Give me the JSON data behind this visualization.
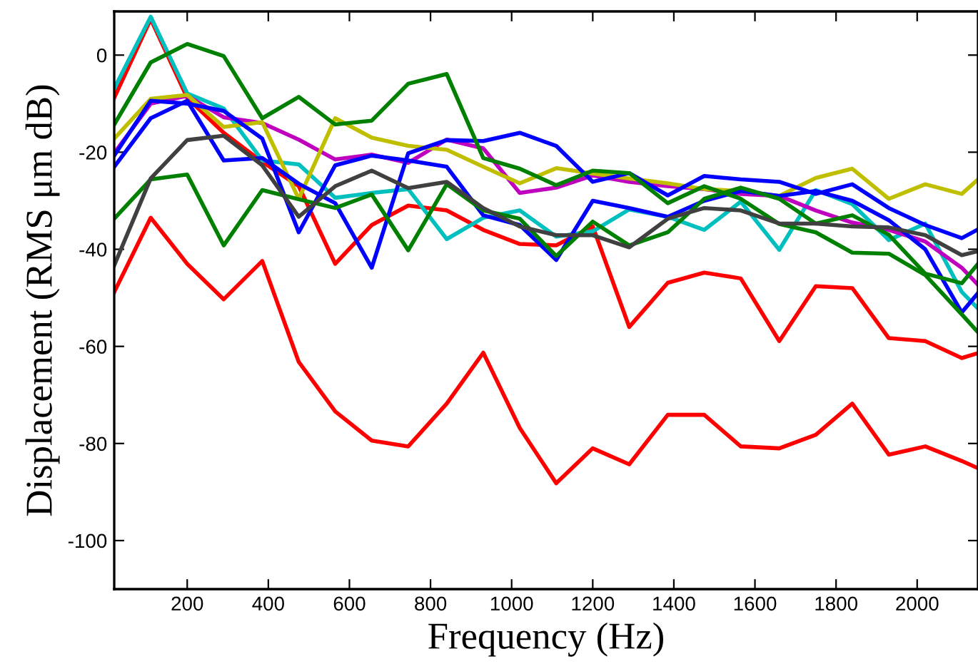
{
  "chart_data": {
    "type": "line",
    "xlabel": "Frequency (Hz)",
    "ylabel": "Displacement (RMS μm dB)",
    "x": [
      20,
      110,
      200,
      290,
      385,
      475,
      565,
      655,
      745,
      840,
      930,
      1020,
      1110,
      1200,
      1290,
      1385,
      1475,
      1565,
      1660,
      1750,
      1840,
      1930,
      2020,
      2110,
      2150
    ],
    "series": [
      {
        "color": "#ff0000",
        "values": [
          -8.8,
          7.4,
          -8.8,
          -16,
          -22,
          -27,
          -43,
          -35,
          -31,
          -32,
          -36,
          -38.9,
          -39.2,
          -35.3,
          -56,
          -46.9,
          -44.8,
          -46,
          -58.9,
          -47.6,
          -48,
          -58.3,
          -58.9,
          -62.4,
          -61.4
        ]
      },
      {
        "color": "#ff0000",
        "values": [
          -48.8,
          -33.5,
          -43,
          -50.3,
          -42.4,
          -63.2,
          -73.4,
          -79.4,
          -80.6,
          -71.8,
          -61.3,
          -76.8,
          -88.2,
          -81,
          -84.3,
          -74.1,
          -74.1,
          -80.6,
          -81,
          -78.2,
          -71.8,
          -82.3,
          -80.6,
          -83.6,
          -85.1
        ]
      },
      {
        "color": "#00bfbf",
        "values": [
          -6.9,
          7.9,
          -7.9,
          -11,
          -21.7,
          -22.5,
          -29.4,
          -28.4,
          -27.6,
          -37.9,
          -33.5,
          -32,
          -37.4,
          -36.3,
          -31.8,
          -33.3,
          -36,
          -30.2,
          -40.1,
          -27.8,
          -30.7,
          -38.1,
          -34.7,
          -48.8,
          -52.2
        ]
      },
      {
        "color": "#bf00bf",
        "values": [
          -20.2,
          -10,
          -8.4,
          -12.8,
          -14,
          -17.4,
          -21.5,
          -20.5,
          -22.2,
          -17.4,
          -19.2,
          -28.4,
          -27.3,
          -24.8,
          -26.1,
          -27,
          -27.6,
          -28.6,
          -29,
          -32,
          -34.5,
          -36,
          -38.4,
          -43.8,
          -47.3
        ]
      },
      {
        "color": "#bfbf00",
        "values": [
          -17.2,
          -9,
          -8.2,
          -14.8,
          -13.8,
          -29.6,
          -13,
          -17,
          -18.7,
          -19.5,
          -23,
          -26.4,
          -23.3,
          -24.4,
          -25.4,
          -26.4,
          -27.6,
          -28,
          -29,
          -25.3,
          -23.4,
          -29.6,
          -26.6,
          -28.6,
          -25.6
        ]
      },
      {
        "color": "#0000ff",
        "values": [
          -23,
          -13,
          -9.4,
          -21.7,
          -21.2,
          -26.5,
          -30.5,
          -43.8,
          -20.2,
          -17.5,
          -17.7,
          -16,
          -18.7,
          -26.1,
          -24.3,
          -28.9,
          -24.9,
          -25.6,
          -26.1,
          -28.6,
          -26.6,
          -31.5,
          -35,
          -37.7,
          -35.9
        ]
      },
      {
        "color": "#0000ff",
        "values": [
          -20.7,
          -9.4,
          -10,
          -11.5,
          -17.2,
          -36.5,
          -22.7,
          -20.7,
          -21.7,
          -23,
          -33,
          -35,
          -42.2,
          -30,
          -31.5,
          -33.3,
          -30,
          -28,
          -29,
          -28,
          -30,
          -34,
          -40,
          -53,
          -49
        ]
      },
      {
        "color": "#008000",
        "values": [
          -14.3,
          -1.5,
          2.3,
          -0.2,
          -13,
          -8.6,
          -14.3,
          -13.5,
          -5.9,
          -3.9,
          -21.2,
          -23.4,
          -26.8,
          -23.8,
          -24.3,
          -30.5,
          -27,
          -29.6,
          -34.8,
          -36.5,
          -40.7,
          -40.9,
          -45.3,
          -53.4,
          -57.1
        ]
      },
      {
        "color": "#008000",
        "values": [
          -33.7,
          -25.6,
          -24.6,
          -39.2,
          -27.8,
          -29.7,
          -31.5,
          -28.7,
          -40.2,
          -26.6,
          -32,
          -33.7,
          -41.4,
          -34.3,
          -39.2,
          -36.5,
          -29.6,
          -27.3,
          -29.6,
          -34.7,
          -33,
          -37,
          -45,
          -47,
          -43
        ]
      },
      {
        "color": "#404040",
        "values": [
          -43.3,
          -25.4,
          -17.5,
          -16.6,
          -22.7,
          -33.3,
          -27,
          -23.8,
          -27.4,
          -26.1,
          -31.5,
          -35.3,
          -37.1,
          -37.1,
          -39.6,
          -33.7,
          -31.5,
          -32,
          -34.7,
          -34.7,
          -35.3,
          -35.5,
          -37.1,
          -41.2,
          -40.4
        ]
      }
    ],
    "xlim": [
      20,
      2150
    ],
    "ylim": [
      -110,
      9
    ],
    "xticks": [
      200,
      400,
      600,
      800,
      1000,
      1200,
      1400,
      1600,
      1800,
      2000
    ],
    "yticks": [
      -100,
      -80,
      -60,
      -40,
      -20,
      0
    ],
    "marker": "none",
    "line_style": "solid",
    "grid": false,
    "legend": false
  }
}
